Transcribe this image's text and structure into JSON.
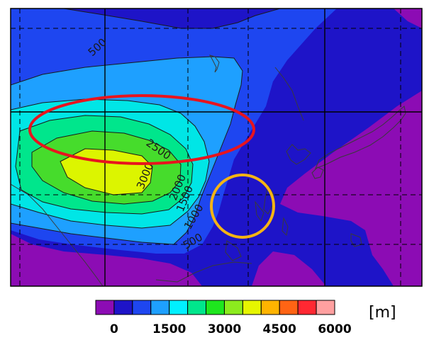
{
  "map": {
    "contour_labels": [
      "500",
      "2500",
      "3000",
      "2000",
      "1500",
      "1000",
      "500"
    ],
    "fill_colors": {
      "deep": "#8C0CB4",
      "level1": "#1E14C8",
      "level2": "#1E46F0",
      "level3": "#1EA0FF",
      "level4": "#00E6E6",
      "level5": "#00E68C",
      "level6": "#46DC2C",
      "level7": "#DCF500",
      "coast": "#3a3a3a"
    },
    "annotations": [
      {
        "shape": "ellipse",
        "color": "#E8141E"
      },
      {
        "shape": "circle",
        "color": "#F5B414"
      }
    ]
  },
  "colorbar": {
    "colors": [
      "#8C0CB4",
      "#1E14C8",
      "#1E46F0",
      "#1EA0FF",
      "#00F0FF",
      "#00E68C",
      "#1EE61E",
      "#8CEB1E",
      "#E6F500",
      "#FFB400",
      "#FF6414",
      "#FF2832",
      "#FFA0A0"
    ],
    "tick_labels": [
      "0",
      "1500",
      "3000",
      "4500",
      "6000"
    ],
    "unit": "[m]"
  }
}
